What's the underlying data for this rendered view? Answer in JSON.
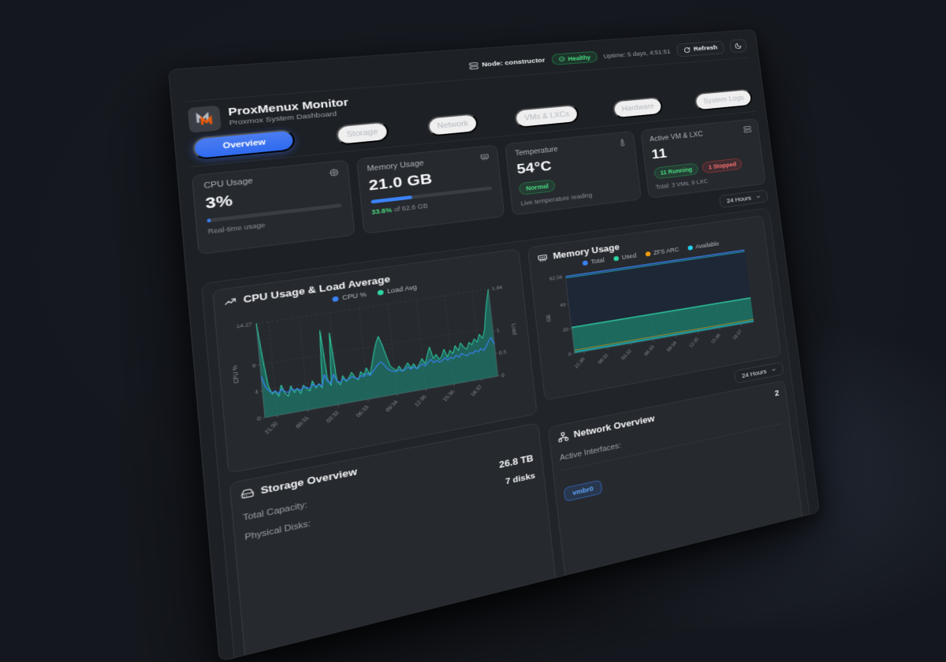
{
  "topbar": {
    "node_label": "Node: constructor",
    "health_label": "Healthy",
    "uptime": "Uptime: 5 days, 4:51:51",
    "refresh_label": "Refresh"
  },
  "header": {
    "title": "ProxMenux Monitor",
    "subtitle": "Proxmox System Dashboard"
  },
  "tabs": [
    {
      "label": "Overview",
      "active": true
    },
    {
      "label": "Storage",
      "active": false
    },
    {
      "label": "Network",
      "active": false
    },
    {
      "label": "VMs & LXCs",
      "active": false
    },
    {
      "label": "Hardware",
      "active": false
    },
    {
      "label": "System Logs",
      "active": false
    }
  ],
  "stat_cards": {
    "cpu": {
      "title": "CPU Usage",
      "value": "3%",
      "percent": 3,
      "caption": "Real-time usage"
    },
    "memory": {
      "title": "Memory Usage",
      "value": "21.0 GB",
      "percent": 33.6,
      "caption_pct": "33.6%",
      "caption_rest": " of 62.6 GB"
    },
    "temperature": {
      "title": "Temperature",
      "value": "54°C",
      "badge": "Normal",
      "caption": "Live temperature reading"
    },
    "vms": {
      "title": "Active VM & LXC",
      "value": "11",
      "running": "11 Running",
      "stopped": "1 Stopped",
      "caption": "Total: 3 VMs, 9 LXC"
    }
  },
  "time_range": {
    "label": "24 Hours"
  },
  "icons": {
    "node": "server-icon",
    "health": "check-circle-icon",
    "refresh": "refresh-icon",
    "theme": "moon-icon",
    "cpu": "cpu-chip-icon",
    "memory": "memory-stick-icon",
    "temperature": "thermometer-icon",
    "vms": "server-stack-icon",
    "cpu_chart": "trending-up-icon",
    "storage": "hard-drive-icon",
    "network": "network-nodes-icon",
    "dropdown": "chevron-down-icon"
  },
  "chart_data": [
    {
      "type": "line",
      "title": "CPU Usage & Load Average",
      "x": [
        "21:30",
        "00:31",
        "03:32",
        "06:33",
        "09:34",
        "12:35",
        "15:36",
        "18:37"
      ],
      "left_axis": {
        "label": "CPU %",
        "ticks": [
          0,
          4,
          8
        ],
        "max": 14.27
      },
      "right_axis": {
        "label": "Load",
        "ticks": [
          0,
          0.5,
          1
        ],
        "max": 1.94
      },
      "grid": true,
      "legend_position": "top",
      "series": [
        {
          "name": "CPU %",
          "color": "#3b82f6",
          "axis": "left",
          "fill": false,
          "values": [
            6.2,
            4.6,
            3.9,
            3.5,
            3.7,
            3.2,
            3.8,
            3.4,
            3.1,
            3.6,
            3.3,
            3.5,
            3.1,
            3.6,
            3.4,
            3.2,
            3.7,
            3.3,
            3.6,
            3.2,
            4.9,
            3.8,
            3.4,
            4.7,
            3.6,
            3.3,
            3.8,
            3.5,
            3.6,
            3.9,
            3.6,
            3.4,
            3.8,
            3.6,
            4.0,
            3.6,
            4.1,
            4.6,
            5.1,
            5.4,
            4.9,
            4.2,
            3.8,
            3.6,
            3.5,
            3.7,
            3.4,
            3.6,
            3.9,
            3.5,
            3.8,
            3.4,
            3.7,
            4.0,
            3.6,
            4.1,
            4.5,
            3.9,
            4.2,
            3.8,
            4.0,
            4.4,
            3.9,
            4.3,
            4.0,
            4.5,
            4.1,
            4.6,
            4.3,
            4.1,
            4.5,
            4.3,
            4.7,
            4.4,
            4.9,
            4.5,
            5.1,
            5.8,
            6.4,
            5.2
          ]
        },
        {
          "name": "Load Avg",
          "color": "#2fd6a8",
          "axis": "right",
          "fill": true,
          "values": [
            1.94,
            1.2,
            0.62,
            0.45,
            0.5,
            0.38,
            0.6,
            0.42,
            0.35,
            0.55,
            0.4,
            0.48,
            0.36,
            0.52,
            0.44,
            0.38,
            0.58,
            0.42,
            0.5,
            0.4,
            1.6,
            0.55,
            0.42,
            1.52,
            0.48,
            0.4,
            0.58,
            0.45,
            0.52,
            0.62,
            0.5,
            0.44,
            0.6,
            0.52,
            0.66,
            0.5,
            0.72,
            0.95,
            1.15,
            1.28,
            1.1,
            0.85,
            0.62,
            0.55,
            0.5,
            0.58,
            0.46,
            0.54,
            0.62,
            0.5,
            0.58,
            0.46,
            0.56,
            0.66,
            0.54,
            0.72,
            0.88,
            0.62,
            0.7,
            0.58,
            0.64,
            0.78,
            0.6,
            0.74,
            0.66,
            0.82,
            0.7,
            0.86,
            0.76,
            0.7,
            0.84,
            0.78,
            0.9,
            0.82,
            0.98,
            0.88,
            1.05,
            1.4,
            1.7,
            1.94
          ]
        }
      ]
    },
    {
      "type": "area",
      "title": "Memory Usage",
      "x": [
        "21:30",
        "00:31",
        "03:32",
        "06:33",
        "09:34",
        "12:35",
        "15:36",
        "18:37"
      ],
      "left_axis": {
        "label": "GB",
        "ticks": [
          0,
          20,
          40
        ],
        "max": 62.56
      },
      "grid": true,
      "legend_position": "top",
      "series": [
        {
          "name": "Total",
          "color": "#3b82f6",
          "constant": 62.56
        },
        {
          "name": "Used",
          "color": "#2fd6a8",
          "constant": 21.0
        },
        {
          "name": "ZFS ARC",
          "color": "#f59e0b",
          "constant": 2.5
        },
        {
          "name": "Available",
          "color": "#22d3ee",
          "constant": 41.5
        }
      ]
    }
  ],
  "storage": {
    "title": "Storage Overview",
    "rows": [
      {
        "label": "Total Capacity:",
        "value": "26.8 TB"
      },
      {
        "label": "Physical Disks:",
        "value": "7 disks"
      }
    ]
  },
  "network": {
    "title": "Network Overview",
    "rows": [
      {
        "label": "Active Interfaces:",
        "value": "2"
      }
    ],
    "interface_badge": "vmbr0"
  }
}
